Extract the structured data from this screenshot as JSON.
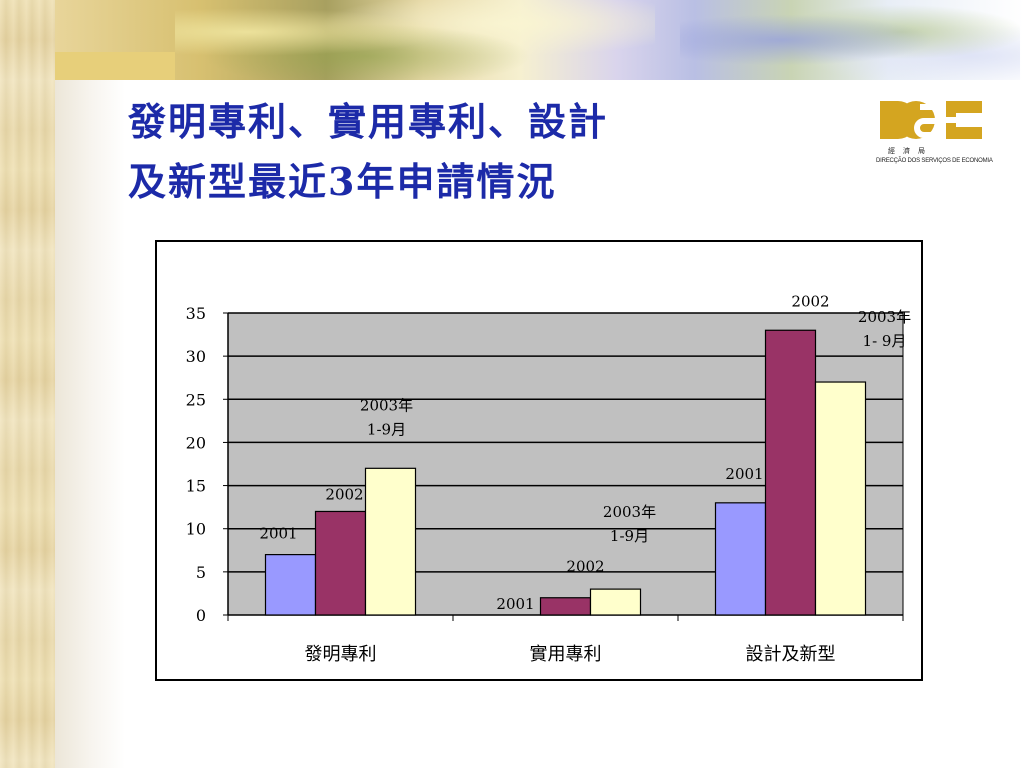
{
  "slide": {
    "title_line1": "發明專利、實用專利、設計",
    "title_line2": "及新型最近3年申請情況",
    "title_color": "#1c2aa8",
    "logo_caption": "DIRECÇÃO DOS SERVIÇOS DE ECONOMIA",
    "logo_cn": "經濟局",
    "logo_color": "#d4a520"
  },
  "chart_data": {
    "type": "bar",
    "title": "",
    "xlabel": "",
    "ylabel": "",
    "categories": [
      "發明專利",
      "實用專利",
      "設計及新型"
    ],
    "series": [
      {
        "name": "2001",
        "values": [
          7,
          0,
          13
        ],
        "color": "#9999ff"
      },
      {
        "name": "2002",
        "values": [
          12,
          2,
          33
        ],
        "color": "#993366"
      },
      {
        "name": "2003年 1-9月",
        "values": [
          17,
          3,
          27
        ],
        "color": "#ffffcc"
      }
    ],
    "ylim": [
      0,
      35
    ],
    "yticks": [
      0,
      5,
      10,
      15,
      20,
      25,
      30,
      35
    ],
    "grid": true,
    "plot_background": "#c0c0c0",
    "legend": "none",
    "bar_labels": [
      [
        "2001",
        "2002",
        "2003年|1-9月"
      ],
      [
        "2001",
        "2002",
        "2003年|1-9月"
      ],
      [
        "2001",
        "2002",
        "2003年|1- 9月"
      ]
    ]
  }
}
